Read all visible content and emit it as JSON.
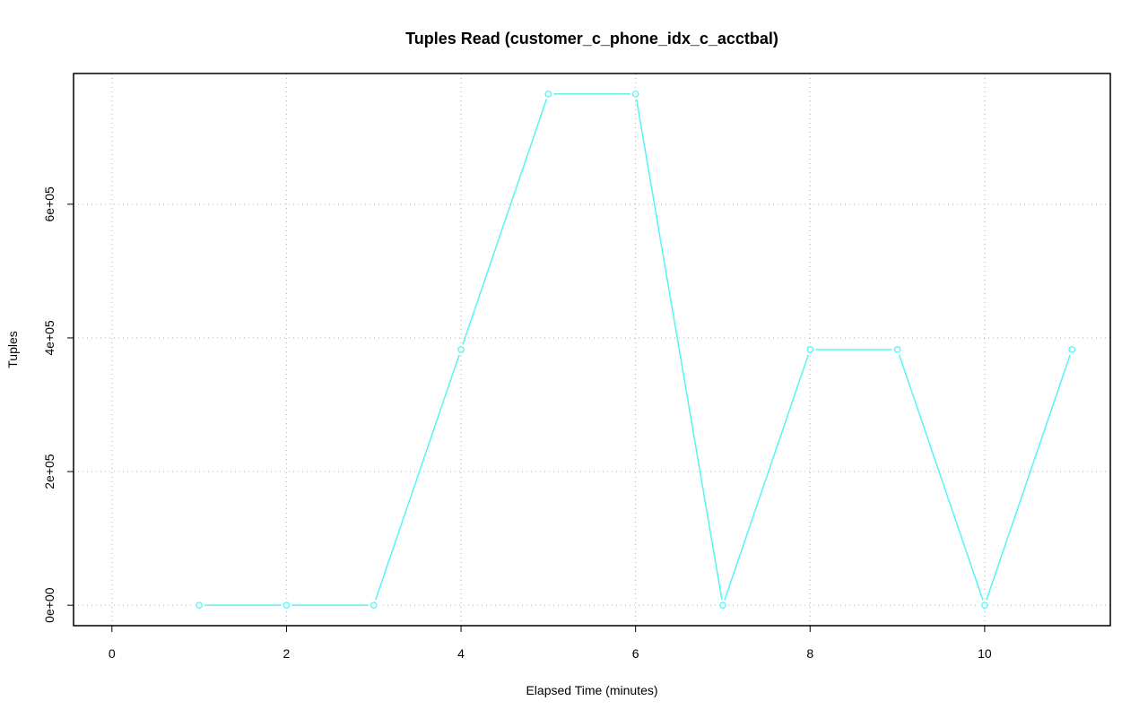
{
  "chart_data": {
    "type": "line",
    "title": "Tuples Read (customer_c_phone_idx_c_acctbal)",
    "x_label": "Elapsed Time (minutes)",
    "y_label": "Tuples",
    "x": [
      1,
      2,
      3,
      4,
      5,
      6,
      7,
      8,
      9,
      10,
      11
    ],
    "series": [
      {
        "color": "#55f5f5",
        "values": [
          0,
          0,
          0,
          382500,
          765000,
          765000,
          0,
          382500,
          382500,
          0,
          382500
        ]
      }
    ],
    "xlim": [
      -0.44,
      11.44
    ],
    "xticks": [
      0,
      2,
      4,
      6,
      8,
      10
    ],
    "ylim": [
      -30600,
      795600
    ],
    "yticks": [
      {
        "value": 0,
        "label": "0e+00"
      },
      {
        "value": 200000,
        "label": "2e+05"
      },
      {
        "value": 400000,
        "label": "4e+05"
      },
      {
        "value": 600000,
        "label": "6e+05"
      }
    ],
    "grid": true
  }
}
